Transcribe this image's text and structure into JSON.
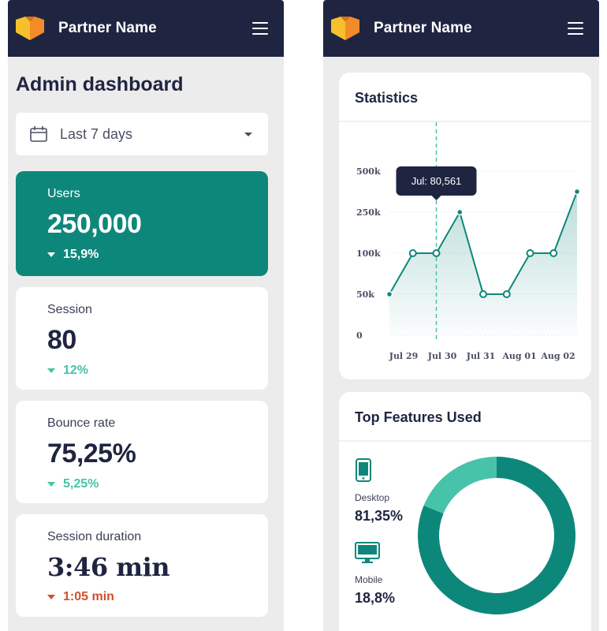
{
  "brand": {
    "name": "Partner Name"
  },
  "left": {
    "title": "Admin dashboard",
    "range_select": {
      "value": "Last 7 days"
    },
    "cards": {
      "users": {
        "label": "Users",
        "value": "250,000",
        "delta": "15,9%"
      },
      "session": {
        "label": "Session",
        "value": "80",
        "delta": "12%"
      },
      "bounce": {
        "label": "Bounce rate",
        "value": "75,25%",
        "delta": "5,25%"
      },
      "duration": {
        "label": "Session duration",
        "value": "3:46 min",
        "delta": "1:05 min"
      }
    }
  },
  "statistics": {
    "title": "Statistics",
    "tooltip": "Jul: 80,561"
  },
  "features": {
    "title": "Top Features Used",
    "desktop": {
      "label": "Desktop",
      "value": "81,35%"
    },
    "mobile": {
      "label": "Mobile",
      "value": "18,8%"
    }
  },
  "colors": {
    "navy": "#1f2541",
    "teal": "#0e877b",
    "mint": "#46c3a9",
    "red": "#d0502c",
    "logo_yellow": "#f5c02b",
    "logo_orange": "#f28c28"
  },
  "icons": [
    "menu-icon",
    "calendar-icon",
    "caret-down-icon",
    "tablet-icon",
    "monitor-icon"
  ],
  "chart_data": [
    {
      "type": "line",
      "title": "Statistics",
      "x_tick_labels": [
        "Jul 29",
        "Jul 30",
        "Jul 31",
        "Aug 01",
        "Aug 02"
      ],
      "y_tick_labels": [
        "0",
        "50k",
        "100k",
        "250k",
        "500k"
      ],
      "series": [
        {
          "values": [
            1,
            2,
            2,
            3,
            1,
            1,
            2,
            2,
            3.5
          ]
        }
      ],
      "ylim": [
        0,
        4
      ],
      "grid": true,
      "highlight_index": 2
    },
    {
      "type": "pie",
      "title": "Top Features Used",
      "categories": [
        "Desktop",
        "Mobile"
      ],
      "values": [
        81.35,
        18.8
      ]
    }
  ]
}
